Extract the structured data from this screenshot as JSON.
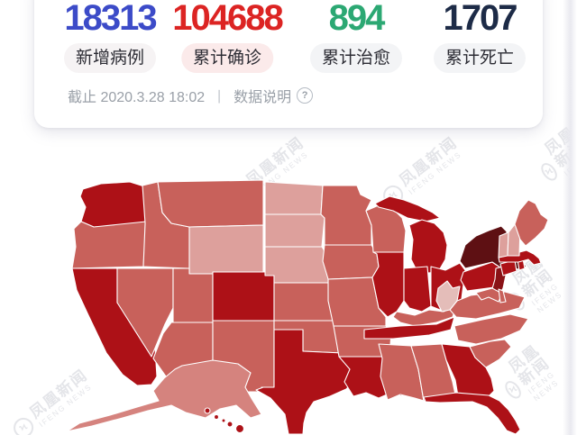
{
  "stats": [
    {
      "value": "18313",
      "label": "新增病例",
      "color": "#3c4bc8",
      "pill_bg": "#f6f3f4",
      "underline": "label"
    },
    {
      "value": "104688",
      "label": "累计确诊",
      "color": "#dc2423",
      "pill_bg": "#fbeaea",
      "underline": "value"
    },
    {
      "value": "894",
      "label": "累计治愈",
      "color": "#2ca873",
      "pill_bg": "#f3f4f6",
      "underline": "none"
    },
    {
      "value": "1707",
      "label": "累计死亡",
      "color": "#1d2b47",
      "pill_bg": "#f3f4f6",
      "underline": "none"
    }
  ],
  "annotation_color": "#c33b2f",
  "meta": {
    "as_of": "截止 2020.3.28 18:02",
    "divider": "丨",
    "data_note": "数据说明",
    "help_glyph": "?"
  },
  "watermark": {
    "line1": "凤凰新闻",
    "line2": "IFENG NEWS"
  },
  "chart_data": {
    "type": "heatmap",
    "subtype": "us-choropleth",
    "title": "",
    "legend_position": "none",
    "levels": {
      "highest": "#5e1013",
      "very_high": "#8a1216",
      "high": "#ad1117",
      "medium": "#c8615b",
      "medium_low": "#d5837e",
      "low": "#dda09c",
      "lowest": "#e4bdb9"
    },
    "regions": [
      {
        "id": "WA",
        "name": "Washington",
        "level": "high"
      },
      {
        "id": "OR",
        "name": "Oregon",
        "level": "medium"
      },
      {
        "id": "CA",
        "name": "California",
        "level": "high"
      },
      {
        "id": "NV",
        "name": "Nevada",
        "level": "medium"
      },
      {
        "id": "ID",
        "name": "Idaho",
        "level": "medium"
      },
      {
        "id": "MT",
        "name": "Montana",
        "level": "medium"
      },
      {
        "id": "WY",
        "name": "Wyoming",
        "level": "low"
      },
      {
        "id": "UT",
        "name": "Utah",
        "level": "medium"
      },
      {
        "id": "CO",
        "name": "Colorado",
        "level": "high"
      },
      {
        "id": "AZ",
        "name": "Arizona",
        "level": "medium"
      },
      {
        "id": "NM",
        "name": "New Mexico",
        "level": "medium"
      },
      {
        "id": "ND",
        "name": "North Dakota",
        "level": "low"
      },
      {
        "id": "SD",
        "name": "South Dakota",
        "level": "low"
      },
      {
        "id": "NE",
        "name": "Nebraska",
        "level": "low"
      },
      {
        "id": "KS",
        "name": "Kansas",
        "level": "medium"
      },
      {
        "id": "OK",
        "name": "Oklahoma",
        "level": "medium"
      },
      {
        "id": "TX",
        "name": "Texas",
        "level": "high"
      },
      {
        "id": "MN",
        "name": "Minnesota",
        "level": "medium"
      },
      {
        "id": "IA",
        "name": "Iowa",
        "level": "medium"
      },
      {
        "id": "MO",
        "name": "Missouri",
        "level": "medium"
      },
      {
        "id": "AR",
        "name": "Arkansas",
        "level": "medium"
      },
      {
        "id": "LA",
        "name": "Louisiana",
        "level": "high"
      },
      {
        "id": "WI",
        "name": "Wisconsin",
        "level": "medium"
      },
      {
        "id": "IL",
        "name": "Illinois",
        "level": "high"
      },
      {
        "id": "MS",
        "name": "Mississippi",
        "level": "medium"
      },
      {
        "id": "MI",
        "name": "Michigan",
        "level": "high"
      },
      {
        "id": "IN",
        "name": "Indiana",
        "level": "high"
      },
      {
        "id": "OH",
        "name": "Ohio",
        "level": "high"
      },
      {
        "id": "KY",
        "name": "Kentucky",
        "level": "medium"
      },
      {
        "id": "TN",
        "name": "Tennessee",
        "level": "high"
      },
      {
        "id": "AL",
        "name": "Alabama",
        "level": "medium"
      },
      {
        "id": "GA",
        "name": "Georgia",
        "level": "high"
      },
      {
        "id": "FL",
        "name": "Florida",
        "level": "high"
      },
      {
        "id": "SC",
        "name": "South Carolina",
        "level": "medium"
      },
      {
        "id": "NC",
        "name": "North Carolina",
        "level": "medium"
      },
      {
        "id": "VA",
        "name": "Virginia",
        "level": "medium"
      },
      {
        "id": "WV",
        "name": "West Virginia",
        "level": "lowest"
      },
      {
        "id": "PA",
        "name": "Pennsylvania",
        "level": "high"
      },
      {
        "id": "NY",
        "name": "New York",
        "level": "highest"
      },
      {
        "id": "NJ",
        "name": "New Jersey",
        "level": "very_high"
      },
      {
        "id": "MD",
        "name": "Maryland",
        "level": "medium"
      },
      {
        "id": "DE",
        "name": "Delaware",
        "level": "medium"
      },
      {
        "id": "CT",
        "name": "Connecticut",
        "level": "high"
      },
      {
        "id": "RI",
        "name": "Rhode Island",
        "level": "high"
      },
      {
        "id": "MA",
        "name": "Massachusetts",
        "level": "high"
      },
      {
        "id": "VT",
        "name": "Vermont",
        "level": "low"
      },
      {
        "id": "NH",
        "name": "New Hampshire",
        "level": "low"
      },
      {
        "id": "ME",
        "name": "Maine",
        "level": "medium"
      },
      {
        "id": "AK",
        "name": "Alaska",
        "level": "medium_low"
      },
      {
        "id": "HI",
        "name": "Hawaii",
        "level": "high"
      }
    ]
  }
}
